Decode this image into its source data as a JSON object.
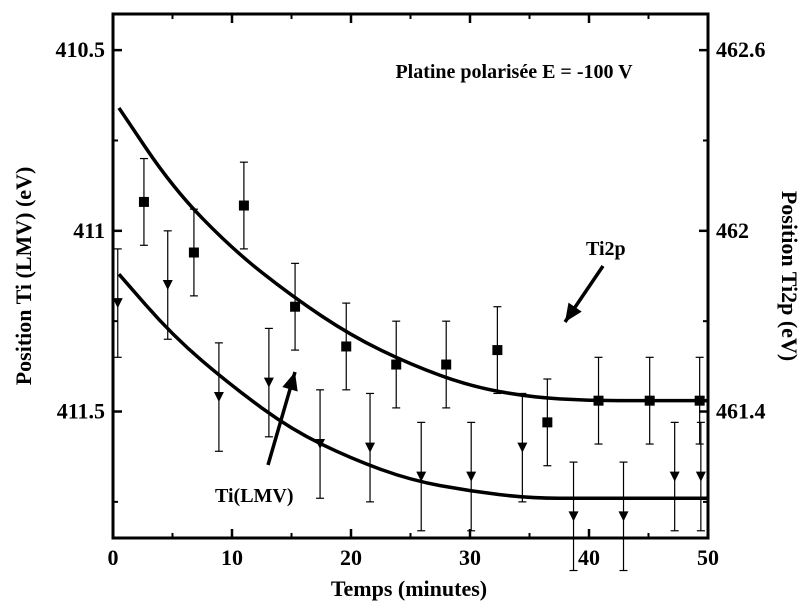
{
  "chart_data": {
    "type": "scatter",
    "title": "Platine polarisée E = -100 V",
    "xlabel": "Temps (minutes)",
    "ylabel_left": "Position Ti (LMV) (eV)",
    "ylabel_right": "Position Ti2p (eV)",
    "xlim": [
      0,
      50
    ],
    "ylim_left": [
      410.4,
      411.85
    ],
    "ylim_left_inverted": true,
    "x_ticks": [
      "0",
      "10",
      "20",
      "30",
      "40",
      "50"
    ],
    "y_left_ticks": [
      "410.5",
      "411",
      "411.5"
    ],
    "y_right_ticks": [
      "462.6",
      "462",
      "461.4"
    ],
    "grid": false,
    "legend": "none",
    "series": [
      {
        "name": "Ti2p",
        "marker": "square",
        "x": [
          2.6,
          6.8,
          11.0,
          15.3,
          19.6,
          23.8,
          28.0,
          32.3,
          36.5,
          40.8,
          45.1,
          49.3
        ],
        "y": [
          410.92,
          411.06,
          410.93,
          411.21,
          411.32,
          411.37,
          411.37,
          411.33,
          411.53,
          411.47,
          411.47,
          411.47
        ],
        "err": [
          0.12,
          0.12,
          0.12,
          0.12,
          0.12,
          0.12,
          0.12,
          0.12,
          0.12,
          0.12,
          0.12,
          0.12
        ]
      },
      {
        "name": "Ti(LMV)",
        "marker": "triangle-down",
        "x": [
          0.4,
          4.6,
          8.9,
          13.1,
          17.4,
          21.6,
          25.9,
          30.1,
          34.4,
          38.7,
          42.9,
          47.2,
          49.4
        ],
        "y": [
          411.2,
          411.15,
          411.46,
          411.42,
          411.59,
          411.6,
          411.68,
          411.68,
          411.6,
          411.79,
          411.79,
          411.68,
          411.68
        ],
        "err": [
          0.15,
          0.15,
          0.15,
          0.15,
          0.15,
          0.15,
          0.15,
          0.15,
          0.15,
          0.15,
          0.15,
          0.15,
          0.15
        ]
      }
    ],
    "fit_curves": [
      {
        "label": "Ti2p",
        "x": [
          0.5,
          5,
          10,
          15,
          20,
          25,
          30,
          35,
          40,
          45,
          50
        ],
        "y": [
          410.66,
          410.88,
          411.05,
          411.18,
          411.29,
          411.37,
          411.43,
          411.46,
          411.47,
          411.47,
          411.47
        ]
      },
      {
        "label": "Ti(LMV)",
        "x": [
          0.5,
          5,
          10,
          15,
          20,
          25,
          30,
          35,
          40,
          45,
          50
        ],
        "y": [
          411.12,
          411.29,
          411.43,
          411.55,
          411.63,
          411.69,
          411.72,
          411.74,
          411.74,
          411.74,
          411.74
        ]
      }
    ],
    "annotations": [
      "Ti2p",
      "Ti(LMV)"
    ]
  }
}
